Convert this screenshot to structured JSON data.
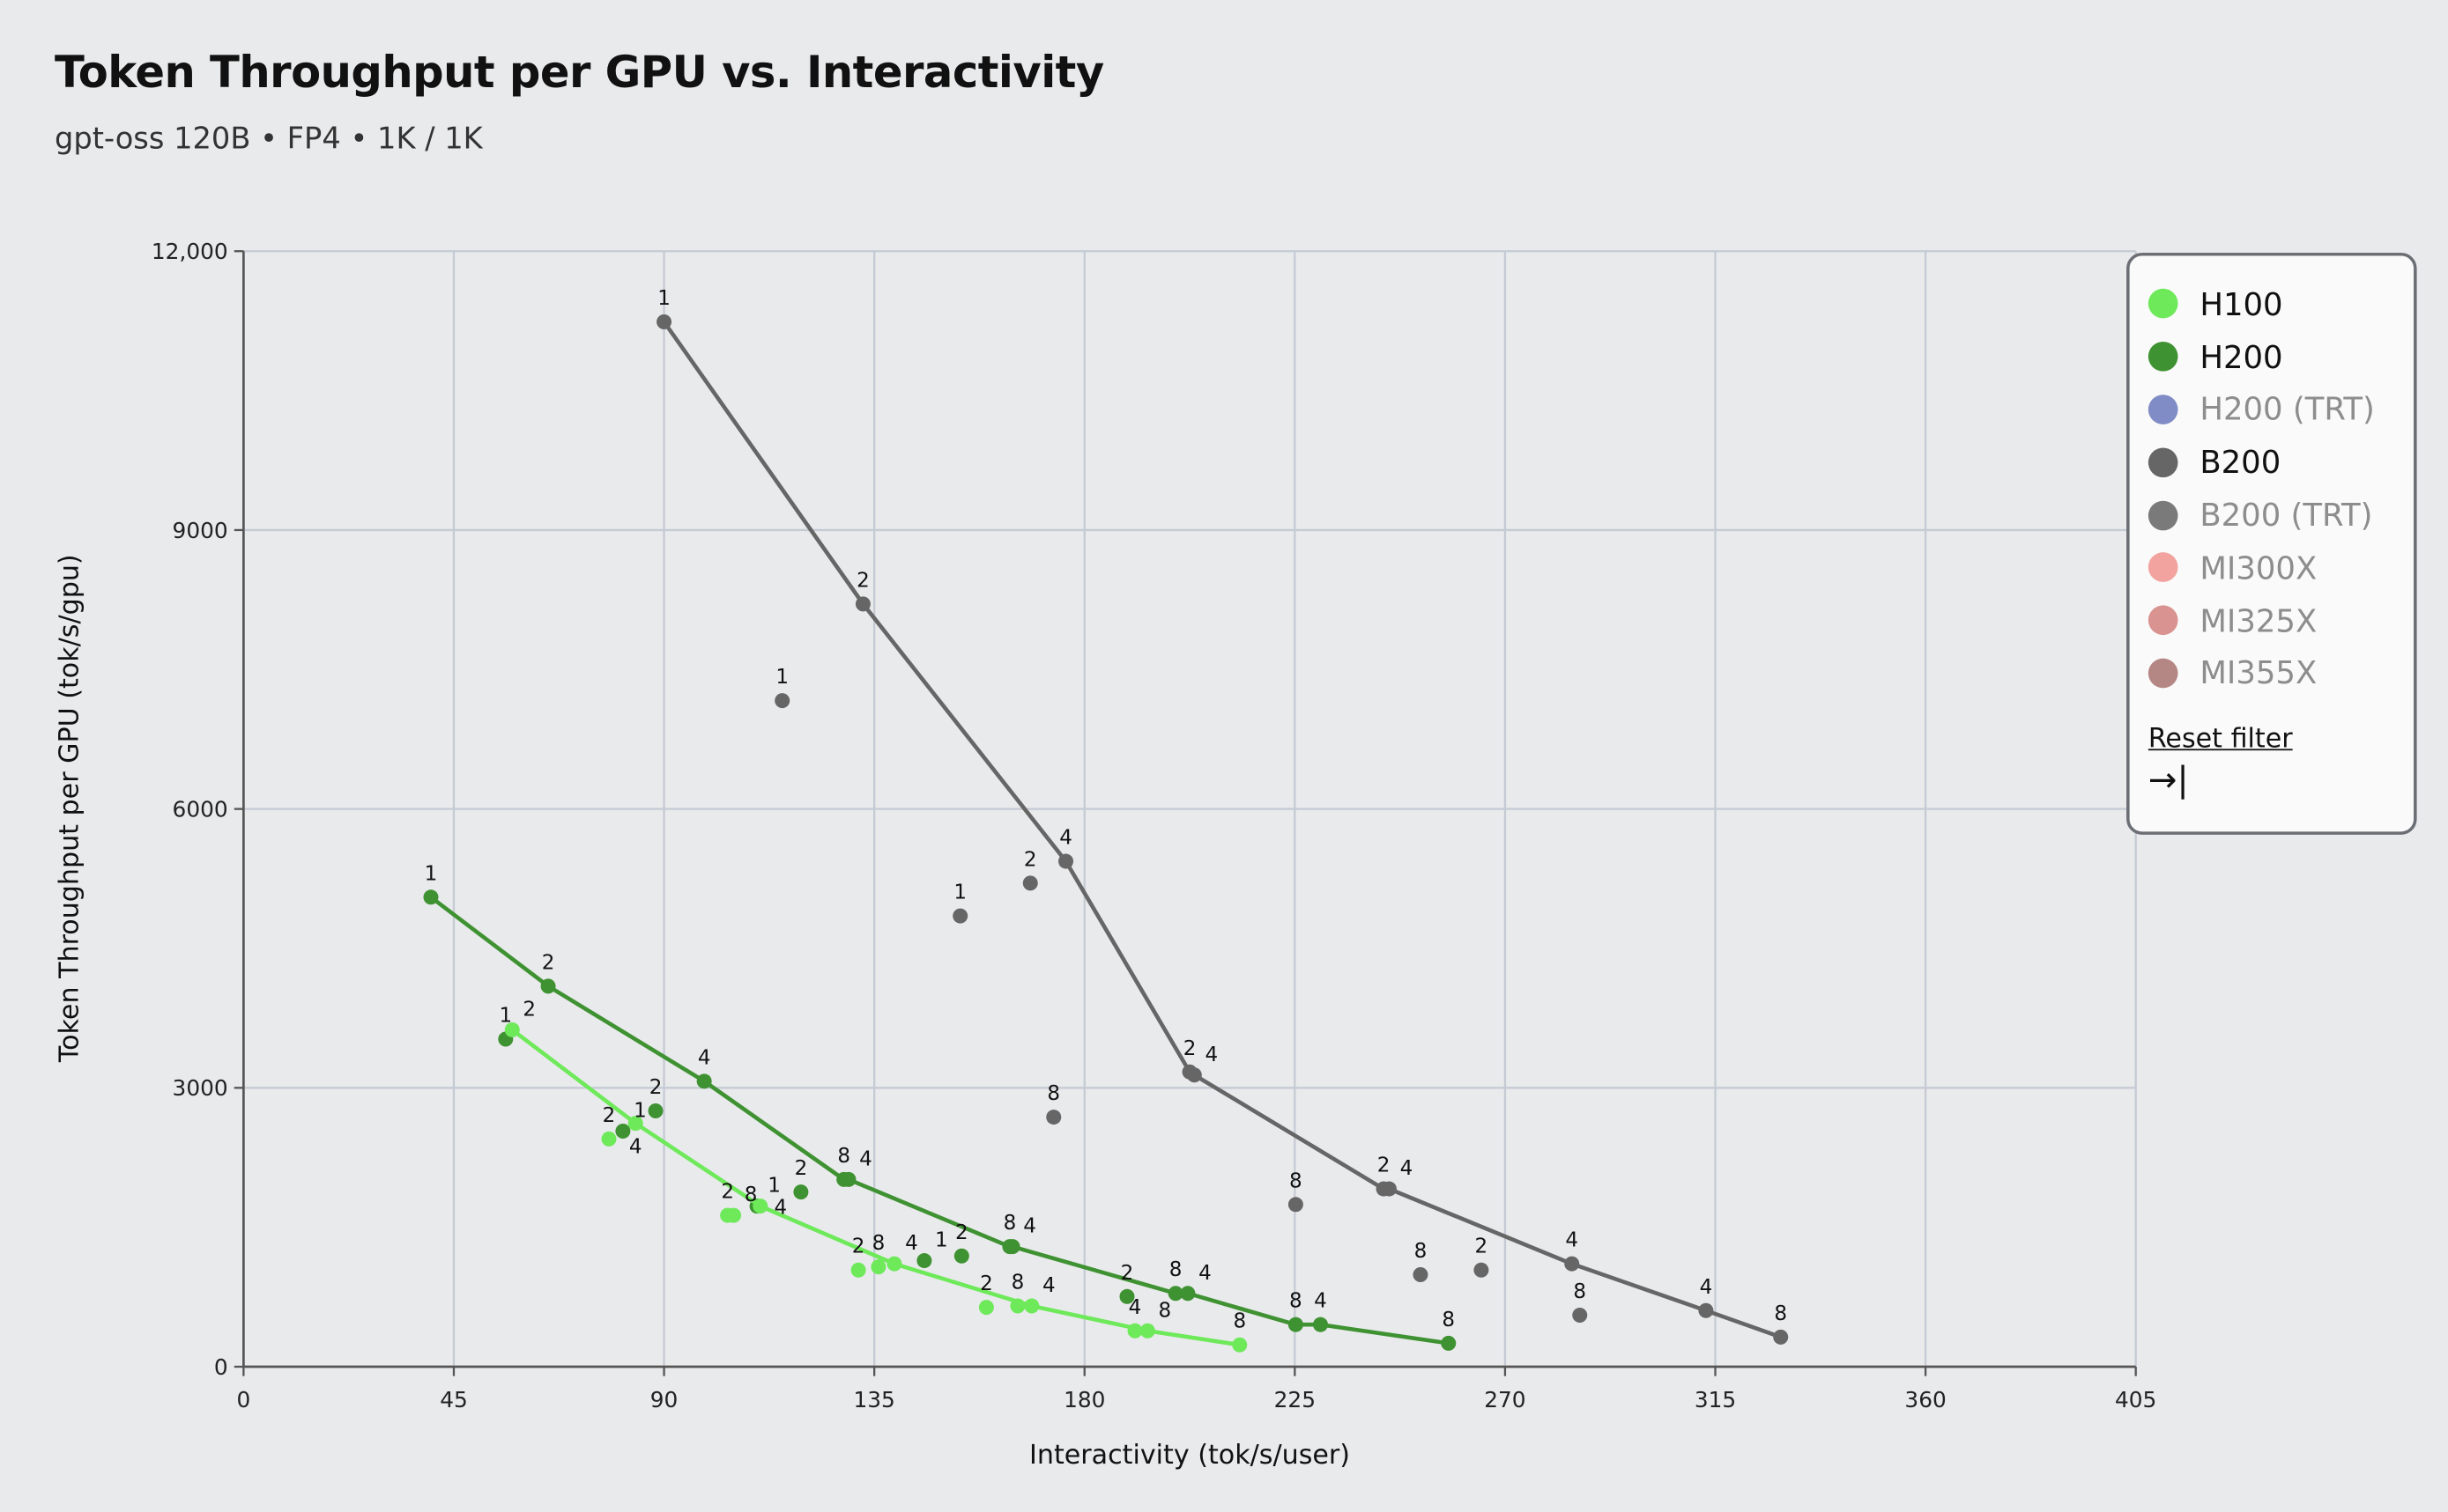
{
  "header": {
    "title": "Token Throughput per GPU vs. Interactivity",
    "subtitle": "gpt-oss 120B • FP4 • 1K / 1K"
  },
  "legend": {
    "items": [
      {
        "label": "H100",
        "color": "#6ee95a",
        "active": true
      },
      {
        "label": "H200",
        "color": "#3f9232",
        "active": true
      },
      {
        "label": "H200 (TRT)",
        "color": "#7f8cc6",
        "active": false
      },
      {
        "label": "B200",
        "color": "#666666",
        "active": true
      },
      {
        "label": "B200 (TRT)",
        "color": "#7a7a7a",
        "active": false
      },
      {
        "label": "MI300X",
        "color": "#f2a39f",
        "active": false
      },
      {
        "label": "MI325X",
        "color": "#d99390",
        "active": false
      },
      {
        "label": "MI355X",
        "color": "#b58784",
        "active": false
      }
    ],
    "reset_label": "Reset filter",
    "collapse_icon": "arrow-right-to-bar-icon"
  },
  "chart_data": {
    "type": "scatter",
    "title": "Token Throughput per GPU vs. Interactivity",
    "subtitle": "gpt-oss 120B • FP4 • 1K / 1K",
    "xlabel": "Interactivity (tok/s/user)",
    "ylabel": "Token Throughput per GPU (tok/s/gpu)",
    "xlim": [
      0,
      405
    ],
    "ylim": [
      0,
      12000
    ],
    "xticks": [
      "0",
      "45",
      "90",
      "135",
      "180",
      "225",
      "270",
      "315",
      "360",
      "405"
    ],
    "yticks": [
      "0",
      "3000",
      "6000",
      "9000",
      "12,000"
    ],
    "grid": true,
    "legend_position": "right",
    "series": [
      {
        "name": "B200",
        "color": "#666666",
        "frontier": [
          [
            90,
            11240,
            "1"
          ],
          [
            132.6,
            8205,
            "2"
          ],
          [
            176,
            5437,
            "4"
          ],
          [
            202.5,
            3171,
            "2"
          ],
          [
            203.5,
            3138,
            "4"
          ],
          [
            244,
            1913,
            "2"
          ],
          [
            245.2,
            1913,
            "4"
          ],
          [
            284.3,
            1107,
            "4"
          ],
          [
            313,
            604,
            "4"
          ],
          [
            329,
            319,
            "8"
          ]
        ],
        "other": [
          [
            115.3,
            7165,
            "1"
          ],
          [
            153.4,
            4849,
            "1"
          ],
          [
            168.4,
            5202,
            "2"
          ],
          [
            173.4,
            2685,
            "8"
          ],
          [
            225.2,
            1745,
            "8"
          ],
          [
            251.9,
            990,
            "8"
          ],
          [
            264.9,
            1040,
            "2"
          ],
          [
            286,
            554,
            "8"
          ]
        ]
      },
      {
        "name": "H200",
        "color": "#3f9232",
        "frontier": [
          [
            40.1,
            5051,
            "1"
          ],
          [
            65.2,
            4094,
            "2"
          ],
          [
            98.6,
            3071,
            "4"
          ],
          [
            128.5,
            2014,
            "8"
          ],
          [
            129.5,
            2014,
            "4"
          ],
          [
            164,
            1292,
            "8"
          ],
          [
            164.6,
            1292,
            "4"
          ],
          [
            199.5,
            789,
            "8"
          ],
          [
            202.1,
            789,
            "4"
          ],
          [
            225.2,
            453,
            "8"
          ],
          [
            230.5,
            453,
            "4"
          ],
          [
            257.9,
            252,
            "8"
          ]
        ],
        "other": [
          [
            56.1,
            3524,
            "1"
          ],
          [
            81.2,
            2534,
            "1"
          ],
          [
            88.2,
            2752,
            "2"
          ],
          [
            109.9,
            1728,
            "1"
          ],
          [
            119.3,
            1879,
            "2"
          ],
          [
            145.7,
            1141,
            "1"
          ],
          [
            153.7,
            1191,
            "2"
          ],
          [
            189.1,
            755,
            "2"
          ]
        ]
      },
      {
        "name": "H100",
        "color": "#6ee95a",
        "frontier": [
          [
            57.5,
            3624,
            "2"
          ],
          [
            83.9,
            2618,
            "4"
          ],
          [
            110.6,
            1728,
            "4"
          ],
          [
            139.3,
            1107,
            "4"
          ],
          [
            168.7,
            654,
            "4"
          ],
          [
            193.5,
            386,
            "8"
          ],
          [
            213.2,
            235,
            "8"
          ]
        ],
        "other": [
          [
            78.2,
            2450,
            "2"
          ],
          [
            103.6,
            1628,
            "2"
          ],
          [
            104.9,
            1628,
            "8"
          ],
          [
            131.6,
            1040,
            "2"
          ],
          [
            135.9,
            1074,
            "8"
          ],
          [
            159,
            638,
            "2"
          ],
          [
            165.7,
            654,
            "8"
          ],
          [
            190.8,
            386,
            "4"
          ]
        ]
      }
    ]
  }
}
